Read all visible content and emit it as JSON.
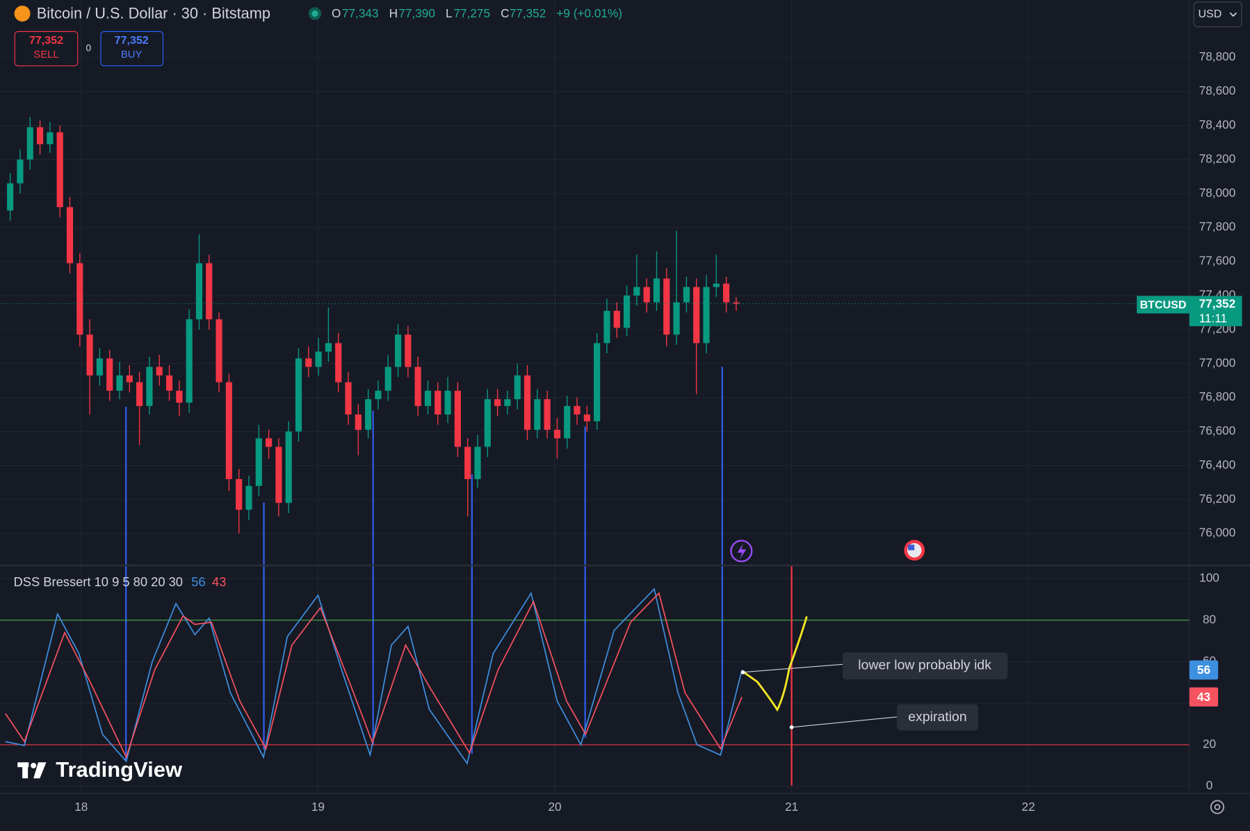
{
  "header": {
    "symbol": "Bitcoin / U.S. Dollar · 30 · Bitstamp",
    "ohlc": [
      {
        "label": "O",
        "value": "77,343"
      },
      {
        "label": "H",
        "value": "77,390"
      },
      {
        "label": "L",
        "value": "77,275"
      },
      {
        "label": "C",
        "value": "77,352"
      }
    ],
    "change": "+9 (+0.01%)",
    "currency": "USD"
  },
  "trade": {
    "sell_price": "77,352",
    "sell": "SELL",
    "spread": "0",
    "buy_price": "77,352",
    "buy": "BUY"
  },
  "price_tag": {
    "symbol": "BTCUSD",
    "price": "77,352",
    "countdown": "11:11"
  },
  "annotations": [
    "lower low probably idk",
    "expiration"
  ],
  "watermark": "TradingView",
  "chart_data": [
    {
      "type": "candlestick",
      "up_color": "#089981",
      "down_color": "#f23645",
      "xlim": [
        17.657,
        22.68
      ],
      "ylim": [
        75817,
        79138
      ],
      "yticks": [
        {
          "value": 76000,
          "label": "76,000"
        },
        {
          "value": 76200,
          "label": "76,200"
        },
        {
          "value": 76400,
          "label": "76,400"
        },
        {
          "value": 76600,
          "label": "76,600"
        },
        {
          "value": 76800,
          "label": "76,800"
        },
        {
          "value": 77000,
          "label": "77,000"
        },
        {
          "value": 77200,
          "label": "77,200"
        },
        {
          "value": 77400,
          "label": "77,400"
        },
        {
          "value": 77600,
          "label": "77,600"
        },
        {
          "value": 77800,
          "label": "77,800"
        },
        {
          "value": 78000,
          "label": "78,000"
        },
        {
          "value": 78200,
          "label": "78,200"
        },
        {
          "value": 78400,
          "label": "78,400"
        },
        {
          "value": 78600,
          "label": "78,600"
        },
        {
          "value": 78800,
          "label": "78,800"
        }
      ],
      "x": [
        17.7,
        17.742,
        17.784,
        17.826,
        17.868,
        17.91,
        17.952,
        17.994,
        18.036,
        18.078,
        18.12,
        18.162,
        18.204,
        18.246,
        18.288,
        18.33,
        18.372,
        18.414,
        18.456,
        18.498,
        18.54,
        18.582,
        18.624,
        18.666,
        18.708,
        18.75,
        18.792,
        18.834,
        18.876,
        18.918,
        18.96,
        19.002,
        19.044,
        19.086,
        19.128,
        19.17,
        19.212,
        19.254,
        19.296,
        19.338,
        19.38,
        19.422,
        19.464,
        19.506,
        19.548,
        19.59,
        19.632,
        19.674,
        19.716,
        19.758,
        19.8,
        19.842,
        19.884,
        19.926,
        19.968,
        20.01,
        20.052,
        20.094,
        20.136,
        20.178,
        20.22,
        20.262,
        20.304,
        20.346,
        20.388,
        20.43,
        20.472,
        20.514,
        20.556,
        20.598,
        20.64,
        20.682,
        20.724,
        20.766
      ],
      "open": [
        77900,
        78060,
        78200,
        78390,
        78290,
        78360,
        77920,
        77590,
        77170,
        76930,
        77030,
        76840,
        76930,
        76890,
        76750,
        76980,
        76930,
        76840,
        76770,
        77260,
        77590,
        77260,
        76890,
        76320,
        76140,
        76280,
        76560,
        76510,
        76180,
        76600,
        77030,
        76980,
        77070,
        77120,
        76890,
        76700,
        76610,
        76790,
        76840,
        76980,
        77170,
        76980,
        76750,
        76840,
        76700,
        76840,
        76510,
        76320,
        76510,
        76790,
        76750,
        76790,
        76930,
        76610,
        76790,
        76610,
        76560,
        76750,
        76700,
        76660,
        77120,
        77310,
        77210,
        77400,
        77450,
        77360,
        77500,
        77170,
        77360,
        77450,
        77120,
        77450,
        77470,
        77360
      ],
      "high": [
        78120,
        78260,
        78450,
        78430,
        78420,
        78400,
        77980,
        77650,
        77260,
        77090,
        77080,
        77010,
        76990,
        76950,
        77040,
        77050,
        76990,
        76900,
        77320,
        77760,
        77640,
        77300,
        76940,
        76380,
        76340,
        76640,
        76610,
        76560,
        76660,
        77090,
        77100,
        77150,
        77330,
        77180,
        76950,
        76760,
        76850,
        76900,
        77050,
        77230,
        77220,
        77040,
        76900,
        76890,
        76920,
        76890,
        76560,
        76580,
        76850,
        76850,
        76840,
        77000,
        76990,
        76850,
        76840,
        76680,
        76810,
        76800,
        76750,
        77180,
        77380,
        77360,
        77460,
        77640,
        77500,
        77660,
        77560,
        77780,
        77510,
        77500,
        77520,
        77640,
        77510,
        77390
      ],
      "low": [
        77840,
        78000,
        78140,
        78230,
        78240,
        77860,
        77530,
        77100,
        76700,
        76870,
        76780,
        76790,
        76830,
        76520,
        76700,
        76870,
        76780,
        76690,
        76710,
        77200,
        77200,
        76830,
        76250,
        76000,
        76080,
        76220,
        76440,
        76100,
        76120,
        76540,
        76920,
        76930,
        77010,
        76830,
        76640,
        76460,
        76560,
        76730,
        76780,
        76920,
        76920,
        76690,
        76700,
        76640,
        76650,
        76450,
        76100,
        76270,
        76450,
        76690,
        76700,
        76730,
        76550,
        76560,
        76560,
        76440,
        76500,
        76640,
        76600,
        76610,
        77060,
        77150,
        77160,
        77340,
        77300,
        77310,
        77100,
        77110,
        77300,
        76820,
        77060,
        77390,
        77300,
        77310
      ],
      "close": [
        78060,
        78200,
        78390,
        78290,
        78360,
        77920,
        77590,
        77170,
        76930,
        77030,
        76840,
        76930,
        76890,
        76750,
        76980,
        76930,
        76840,
        76770,
        77260,
        77590,
        77260,
        76890,
        76320,
        76140,
        76280,
        76560,
        76510,
        76180,
        76600,
        77030,
        76980,
        77070,
        77120,
        76890,
        76700,
        76610,
        76790,
        76840,
        76980,
        77170,
        76980,
        76750,
        76840,
        76700,
        76840,
        76510,
        76320,
        76510,
        76790,
        76750,
        76790,
        76930,
        76610,
        76790,
        76610,
        76560,
        76750,
        76700,
        76660,
        77120,
        77310,
        77210,
        77400,
        77450,
        77360,
        77500,
        77170,
        77360,
        77450,
        77120,
        77450,
        77470,
        77360,
        77352
      ]
    },
    {
      "type": "line",
      "title": "DSS Bressert 10 9 5 80 20 30",
      "xlim": [
        17.657,
        22.68
      ],
      "xticks": [
        18,
        19,
        20,
        21,
        22
      ],
      "ylim": [
        -3.5,
        106
      ],
      "yticks": [
        0,
        20,
        40,
        60,
        80,
        100
      ],
      "levels": [
        80,
        20
      ],
      "level_colors": [
        "#4caf50",
        "#f23645"
      ],
      "series": [
        {
          "color": "#3d8fe0",
          "last": 56,
          "x": [
            17.68,
            17.76,
            17.9,
            17.99,
            18.09,
            18.19,
            18.3,
            18.4,
            18.48,
            18.54,
            18.63,
            18.77,
            18.87,
            19.0,
            19.1,
            19.22,
            19.31,
            19.38,
            19.47,
            19.63,
            19.74,
            19.9,
            20.01,
            20.11,
            20.25,
            20.42,
            20.52,
            20.6,
            20.7,
            20.79
          ],
          "values": [
            21.5,
            19.6,
            83,
            64,
            25,
            12,
            60,
            88,
            73,
            81,
            45,
            14,
            72,
            92,
            56,
            15,
            68,
            77,
            37,
            11,
            64,
            93,
            41,
            20,
            75,
            95,
            45,
            20,
            15,
            56
          ]
        },
        {
          "color": "#f7525f",
          "last": 43,
          "x": [
            17.68,
            17.76,
            17.93,
            18.03,
            18.19,
            18.31,
            18.43,
            18.48,
            18.55,
            18.67,
            18.78,
            18.89,
            19.01,
            19.14,
            19.23,
            19.37,
            19.47,
            19.64,
            19.76,
            19.91,
            20.05,
            20.13,
            20.32,
            20.44,
            20.55,
            20.7,
            20.79
          ],
          "values": [
            35,
            21.5,
            74,
            52,
            14,
            56,
            82,
            78,
            79,
            41,
            18,
            68,
            86,
            48,
            21,
            68,
            48,
            16,
            56,
            89,
            41,
            25,
            79,
            93,
            45,
            18,
            43
          ]
        }
      ]
    }
  ]
}
